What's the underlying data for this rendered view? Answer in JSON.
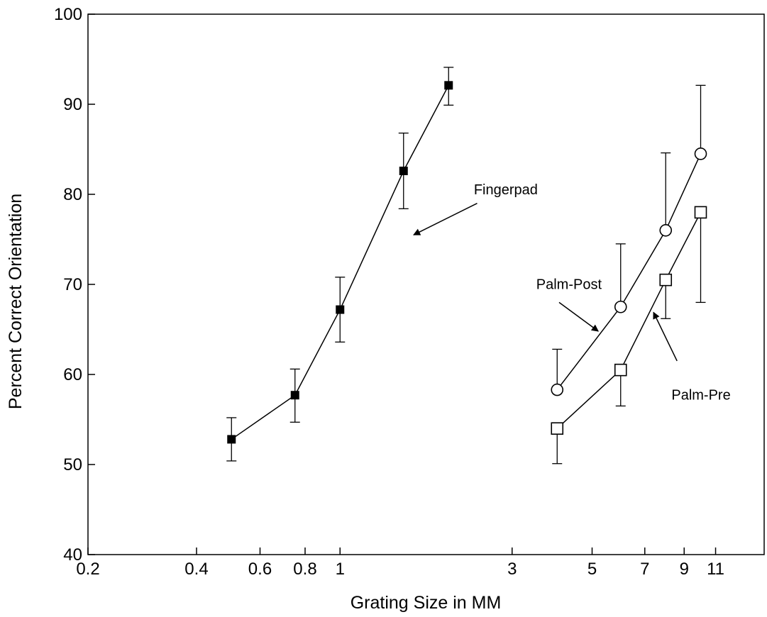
{
  "chart_data": {
    "type": "line",
    "xlabel": "Grating Size in MM",
    "ylabel": "Percent Correct Orientation",
    "xscale": "log",
    "xlim": [
      0.2,
      15
    ],
    "ylim": [
      40,
      100
    ],
    "xticks": [
      {
        "value": 0.2,
        "label": "0.2"
      },
      {
        "value": 0.4,
        "label": "0.4"
      },
      {
        "value": 0.6,
        "label": "0.6"
      },
      {
        "value": 0.8,
        "label": "0.8"
      },
      {
        "value": 1,
        "label": "1"
      },
      {
        "value": 3,
        "label": "3"
      },
      {
        "value": 5,
        "label": "5"
      },
      {
        "value": 7,
        "label": "7"
      },
      {
        "value": 9,
        "label": "9"
      },
      {
        "value": 11,
        "label": "11"
      }
    ],
    "yticks": [
      {
        "value": 40,
        "label": "40"
      },
      {
        "value": 50,
        "label": "50"
      },
      {
        "value": 60,
        "label": "60"
      },
      {
        "value": 70,
        "label": "70"
      },
      {
        "value": 80,
        "label": "80"
      },
      {
        "value": 90,
        "label": "90"
      },
      {
        "value": 100,
        "label": "100"
      }
    ],
    "grid": false,
    "series": [
      {
        "name": "Fingerpad",
        "marker": "filled-square",
        "x": [
          0.5,
          0.75,
          1.0,
          1.5,
          2.0
        ],
        "y": [
          52.8,
          57.7,
          67.2,
          82.6,
          92.1
        ],
        "err_low": [
          50.4,
          54.7,
          63.6,
          78.4,
          89.9
        ],
        "err_high": [
          55.2,
          60.6,
          70.8,
          86.8,
          94.1
        ]
      },
      {
        "name": "Palm-Post",
        "marker": "open-circle",
        "x": [
          4,
          6,
          8,
          10
        ],
        "y": [
          58.3,
          67.5,
          76.0,
          84.5
        ],
        "err_low": [
          null,
          null,
          null,
          null
        ],
        "err_high": [
          62.8,
          74.5,
          84.6,
          92.1
        ]
      },
      {
        "name": "Palm-Pre",
        "marker": "open-square",
        "x": [
          4,
          6,
          8,
          10
        ],
        "y": [
          54.0,
          60.5,
          70.5,
          78.0
        ],
        "err_low": [
          50.1,
          56.5,
          66.2,
          68.0
        ],
        "err_high": [
          null,
          null,
          null,
          null
        ]
      }
    ],
    "annotations": [
      {
        "text": "Fingerpad",
        "series": "Fingerpad",
        "label_at": [
          2.35,
          80.0
        ],
        "arrow_from": [
          2.4,
          79.0
        ],
        "arrow_to": [
          1.6,
          75.5
        ]
      },
      {
        "text": "Palm-Post",
        "series": "Palm-Post",
        "label_at": [
          3.5,
          69.5
        ],
        "arrow_from": [
          4.05,
          68.0
        ],
        "arrow_to": [
          5.2,
          64.8
        ]
      },
      {
        "text": "Palm-Pre",
        "series": "Palm-Pre",
        "label_at": [
          8.3,
          57.2
        ],
        "arrow_from": [
          8.6,
          61.5
        ],
        "arrow_to": [
          7.4,
          66.9
        ]
      }
    ]
  }
}
